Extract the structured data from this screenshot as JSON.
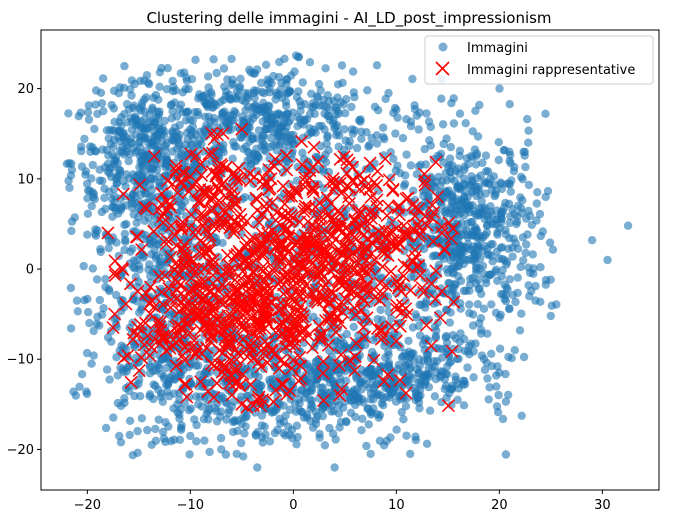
{
  "chart_data": {
    "type": "scatter",
    "title": "Clustering delle immagini - AI_LD_post_impressionism",
    "xlabel": "",
    "ylabel": "",
    "xlim": [
      -24.5,
      35.5
    ],
    "ylim": [
      -24.5,
      26.5
    ],
    "xticks": [
      -20,
      -10,
      0,
      10,
      20,
      30
    ],
    "yticks": [
      -20,
      -10,
      0,
      10,
      20
    ],
    "grid": false,
    "legend_position": "top-right",
    "series": [
      {
        "name": "Immagini",
        "marker": "circle",
        "color": "#1f77b4",
        "alpha": 0.6,
        "outliers": [
          [
            32.5,
            4.8
          ],
          [
            30.5,
            1.0
          ],
          [
            29.0,
            3.2
          ],
          [
            25.0,
            -5.2
          ],
          [
            24.5,
            8.0
          ],
          [
            24.0,
            0.2
          ],
          [
            23.5,
            -3.5
          ],
          [
            22.0,
            -6.8
          ],
          [
            21.5,
            -9.0
          ],
          [
            -21.5,
            11.0
          ],
          [
            -21.0,
            -3.5
          ],
          [
            -19.8,
            -6.0
          ],
          [
            -20.0,
            3.8
          ],
          [
            -19.5,
            13.5
          ],
          [
            -3.5,
            -22.0
          ],
          [
            4.0,
            -22.0
          ],
          [
            7.5,
            -20.5
          ],
          [
            -5.5,
            -20.5
          ],
          [
            -7.0,
            -20.0
          ],
          [
            0.5,
            23.5
          ],
          [
            -6.0,
            23.3
          ],
          [
            -9.5,
            23.2
          ],
          [
            -2.5,
            21.0
          ],
          [
            2.5,
            20.5
          ],
          [
            12.0,
            17.0
          ],
          [
            -14.0,
            20.5
          ],
          [
            20.0,
            -11.5
          ],
          [
            17.5,
            -12.0
          ],
          [
            -16.0,
            -13.0
          ],
          [
            -10.0,
            -18.5
          ]
        ],
        "clusters": [
          {
            "cx": -14.0,
            "cy": 12.0,
            "sx": 3.8,
            "sy": 4.2,
            "n": 460
          },
          {
            "cx": -3.0,
            "cy": 16.5,
            "sx": 5.5,
            "sy": 3.0,
            "n": 420
          },
          {
            "cx": 17.0,
            "cy": 4.0,
            "sx": 3.5,
            "sy": 5.5,
            "n": 520
          },
          {
            "cx": -2.0,
            "cy": -13.0,
            "sx": 8.0,
            "sy": 3.5,
            "n": 560
          },
          {
            "cx": -13.0,
            "cy": -4.0,
            "sx": 3.5,
            "sy": 6.0,
            "n": 360
          },
          {
            "cx": 9.0,
            "cy": -11.0,
            "sx": 4.5,
            "sy": 2.5,
            "n": 260
          },
          {
            "cx": 3.0,
            "cy": 1.0,
            "sx": 11.0,
            "sy": 8.5,
            "n": 700
          }
        ]
      },
      {
        "name": "Immagini rappresentative",
        "marker": "x",
        "color": "#ff0000",
        "clusters": [
          {
            "cx": -6.0,
            "cy": -5.5,
            "sx": 5.0,
            "sy": 4.0,
            "n": 380
          },
          {
            "cx": 5.0,
            "cy": 3.5,
            "sx": 5.0,
            "sy": 4.5,
            "n": 330
          },
          {
            "cx": -9.0,
            "cy": 7.5,
            "sx": 3.0,
            "sy": 3.5,
            "n": 120
          },
          {
            "cx": 0.0,
            "cy": -2.0,
            "sx": 8.0,
            "sy": 6.5,
            "n": 250
          }
        ],
        "outliers": [
          [
            -5.0,
            15.5
          ],
          [
            2.0,
            13.5
          ],
          [
            -13.5,
            12.5
          ],
          [
            -16.5,
            8.3
          ],
          [
            15.5,
            4.5
          ],
          [
            14.0,
            8.0
          ],
          [
            -18.0,
            4.0
          ],
          [
            -17.5,
            -6.5
          ],
          [
            -9.0,
            -12.5
          ],
          [
            4.5,
            -14.0
          ],
          [
            -3.0,
            -14.5
          ],
          [
            -5.0,
            -15.0
          ],
          [
            10.0,
            -8.0
          ]
        ]
      }
    ]
  }
}
